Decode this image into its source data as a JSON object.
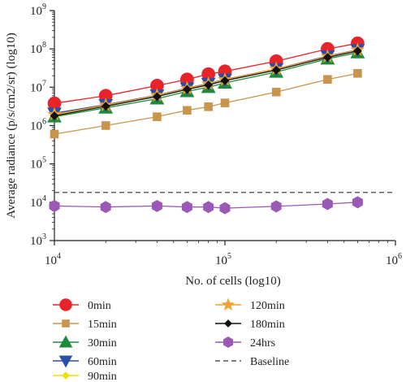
{
  "chart_data": {
    "type": "line",
    "title": "",
    "xlabel": "No. of cells (log10)",
    "ylabel": "Average radiance (p/s/cm2/sr) (log10)",
    "x_scale": "log",
    "y_scale": "log",
    "xlim": [
      10000,
      1000000
    ],
    "ylim": [
      1000,
      1000000000
    ],
    "x_ticks": [
      10000,
      100000,
      1000000
    ],
    "y_ticks": [
      1000,
      10000,
      100000,
      1000000,
      10000000,
      100000000,
      1000000000
    ],
    "x_tick_labels": [
      {
        "base": "10",
        "exp": "4"
      },
      {
        "base": "10",
        "exp": "5"
      },
      {
        "base": "10",
        "exp": "6"
      }
    ],
    "y_tick_labels": [
      {
        "base": "10",
        "exp": "3"
      },
      {
        "base": "10",
        "exp": "4"
      },
      {
        "base": "10",
        "exp": "5"
      },
      {
        "base": "10",
        "exp": "6"
      },
      {
        "base": "10",
        "exp": "7"
      },
      {
        "base": "10",
        "exp": "8"
      },
      {
        "base": "10",
        "exp": "9"
      }
    ],
    "x": [
      10000,
      20000,
      40000,
      60000,
      80000,
      100000,
      200000,
      400000,
      600000
    ],
    "grid": false,
    "legend_position": "bottom",
    "series": [
      {
        "name": "0min",
        "color": "#e8232a",
        "marker": "circle",
        "values": [
          3800000,
          6000000,
          11000000,
          16000000,
          22000000,
          26000000,
          48000000,
          100000000,
          140000000
        ]
      },
      {
        "name": "15min",
        "color": "#c9954c",
        "marker": "square",
        "values": [
          600000,
          1000000,
          1700000,
          2500000,
          3100000,
          3900000,
          7500000,
          16000000,
          23000000
        ]
      },
      {
        "name": "30min",
        "color": "#1e8a3a",
        "marker": "triangle-up",
        "values": [
          1700000,
          2900000,
          5000000,
          7800000,
          10000000,
          13000000,
          25000000,
          55000000,
          80000000
        ]
      },
      {
        "name": "60min",
        "color": "#2b4fa8",
        "marker": "triangle-down",
        "values": [
          2100000,
          3500000,
          6200000,
          9500000,
          12500000,
          16000000,
          30000000,
          65000000,
          95000000
        ]
      },
      {
        "name": "90min",
        "color": "#f0e000",
        "marker": "diamond",
        "values": [
          1900000,
          3300000,
          6000000,
          9000000,
          12000000,
          15500000,
          29000000,
          62000000,
          92000000
        ]
      },
      {
        "name": "120min",
        "color": "#f0a030",
        "marker": "star",
        "values": [
          1950000,
          3400000,
          6100000,
          9300000,
          12200000,
          15700000,
          30000000,
          63000000,
          94000000
        ]
      },
      {
        "name": "180min",
        "color": "#111111",
        "marker": "diamond",
        "values": [
          1800000,
          3200000,
          5700000,
          8800000,
          11500000,
          14800000,
          28000000,
          60000000,
          88000000
        ]
      },
      {
        "name": "24hrs",
        "color": "#9b59b6",
        "marker": "hexagon",
        "values": [
          8000,
          7500,
          8000,
          7500,
          7500,
          7000,
          7800,
          9000,
          10000
        ]
      }
    ],
    "reference_lines": [
      {
        "name": "Baseline",
        "y": 18000,
        "style": "dashed",
        "color": "#333333"
      }
    ]
  }
}
